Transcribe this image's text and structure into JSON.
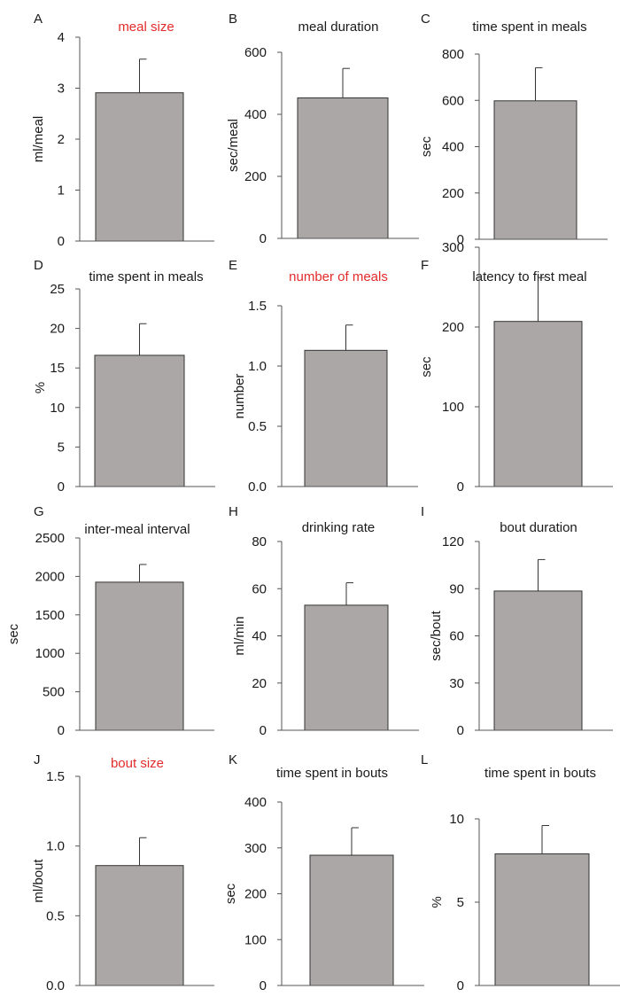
{
  "figure": {
    "panel_count": 12,
    "colors": {
      "bar_fill": "#aba7a6",
      "bar_stroke": "#333333",
      "axis": "#555555",
      "title_default": "#1a1a1a",
      "title_highlight": "#e32b2b",
      "text": "#1a1a1a"
    }
  },
  "chart_data": [
    {
      "panel": "A",
      "type": "bar",
      "title": "meal size",
      "title_highlight": true,
      "ylabel": "ml/meal",
      "ylim": [
        0,
        4
      ],
      "ticks": [
        0,
        1,
        2,
        3,
        4
      ],
      "tick_labels": [
        "0",
        "1",
        "2",
        "3",
        "4"
      ],
      "value": 2.91,
      "error": 0.66
    },
    {
      "panel": "B",
      "type": "bar",
      "title": "meal duration",
      "title_highlight": false,
      "ylabel": "sec/meal",
      "ylim": [
        0,
        600
      ],
      "ticks": [
        0,
        200,
        400,
        600
      ],
      "tick_labels": [
        "0",
        "200",
        "400",
        "600"
      ],
      "value": 453,
      "error": 95
    },
    {
      "panel": "C",
      "type": "bar",
      "title": "time spent in meals",
      "title_highlight": false,
      "ylabel": "sec",
      "ylim": [
        0,
        800
      ],
      "ticks": [
        0,
        200,
        400,
        600,
        800
      ],
      "tick_labels": [
        "0",
        "200",
        "400",
        "600",
        "800"
      ],
      "value": 598,
      "error": 143
    },
    {
      "panel": "D",
      "type": "bar",
      "title": "time spent in meals",
      "title_highlight": false,
      "ylabel": "%",
      "ylim": [
        0,
        25
      ],
      "ticks": [
        0,
        5,
        10,
        15,
        20,
        25
      ],
      "tick_labels": [
        "0",
        "5",
        "10",
        "15",
        "20",
        "25"
      ],
      "value": 16.6,
      "error": 4.0
    },
    {
      "panel": "E",
      "type": "bar",
      "title": "number of meals",
      "title_highlight": true,
      "ylabel": "number",
      "ylim": [
        0,
        1.5
      ],
      "ticks": [
        0,
        0.5,
        1.0,
        1.5
      ],
      "tick_labels": [
        "0.0",
        "0.5",
        "1.0",
        "1.5"
      ],
      "value": 1.13,
      "error": 0.21
    },
    {
      "panel": "F",
      "type": "bar",
      "title": "latency to first meal",
      "title_highlight": false,
      "ylabel": "sec",
      "ylim": [
        0,
        300
      ],
      "ticks": [
        0,
        100,
        200,
        300
      ],
      "tick_labels": [
        "0",
        "100",
        "200",
        "300"
      ],
      "value": 207,
      "error": 55
    },
    {
      "panel": "G",
      "type": "bar",
      "title": "inter-meal interval",
      "title_highlight": false,
      "ylabel": "sec",
      "ylim": [
        0,
        2500
      ],
      "ticks": [
        0,
        500,
        1000,
        1500,
        2000,
        2500
      ],
      "tick_labels": [
        "0",
        "500",
        "1000",
        "1500",
        "2000",
        "2500"
      ],
      "value": 1925,
      "error": 230
    },
    {
      "panel": "H",
      "type": "bar",
      "title": "drinking rate",
      "title_highlight": false,
      "ylabel": "ml/min",
      "ylim": [
        0,
        80
      ],
      "ticks": [
        0,
        20,
        40,
        60,
        80
      ],
      "tick_labels": [
        "0",
        "20",
        "40",
        "60",
        "80"
      ],
      "value": 53,
      "error": 9.5
    },
    {
      "panel": "I",
      "type": "bar",
      "title": "bout duration",
      "title_highlight": false,
      "ylabel": "sec/bout",
      "ylim": [
        0,
        120
      ],
      "ticks": [
        0,
        30,
        60,
        90,
        120
      ],
      "tick_labels": [
        "0",
        "30",
        "60",
        "90",
        "120"
      ],
      "value": 88.5,
      "error": 20
    },
    {
      "panel": "J",
      "type": "bar",
      "title": "bout size",
      "title_highlight": true,
      "ylabel": "ml/bout",
      "ylim": [
        0,
        1.5
      ],
      "ticks": [
        0,
        0.5,
        1.0,
        1.5
      ],
      "tick_labels": [
        "0.0",
        "0.5",
        "1.0",
        "1.5"
      ],
      "value": 0.86,
      "error": 0.2
    },
    {
      "panel": "K",
      "type": "bar",
      "title": "time spent in bouts",
      "title_highlight": false,
      "ylabel": "sec",
      "ylim": [
        0,
        400
      ],
      "ticks": [
        0,
        100,
        200,
        300,
        400
      ],
      "tick_labels": [
        "0",
        "100",
        "200",
        "300",
        "400"
      ],
      "value": 284,
      "error": 60
    },
    {
      "panel": "L",
      "type": "bar",
      "title": "time spent in bouts",
      "title_highlight": false,
      "ylabel": "%",
      "ylim": [
        0,
        10
      ],
      "ticks": [
        0,
        5,
        10
      ],
      "tick_labels": [
        "0",
        "5",
        "10"
      ],
      "value": 7.9,
      "error": 1.7
    }
  ]
}
